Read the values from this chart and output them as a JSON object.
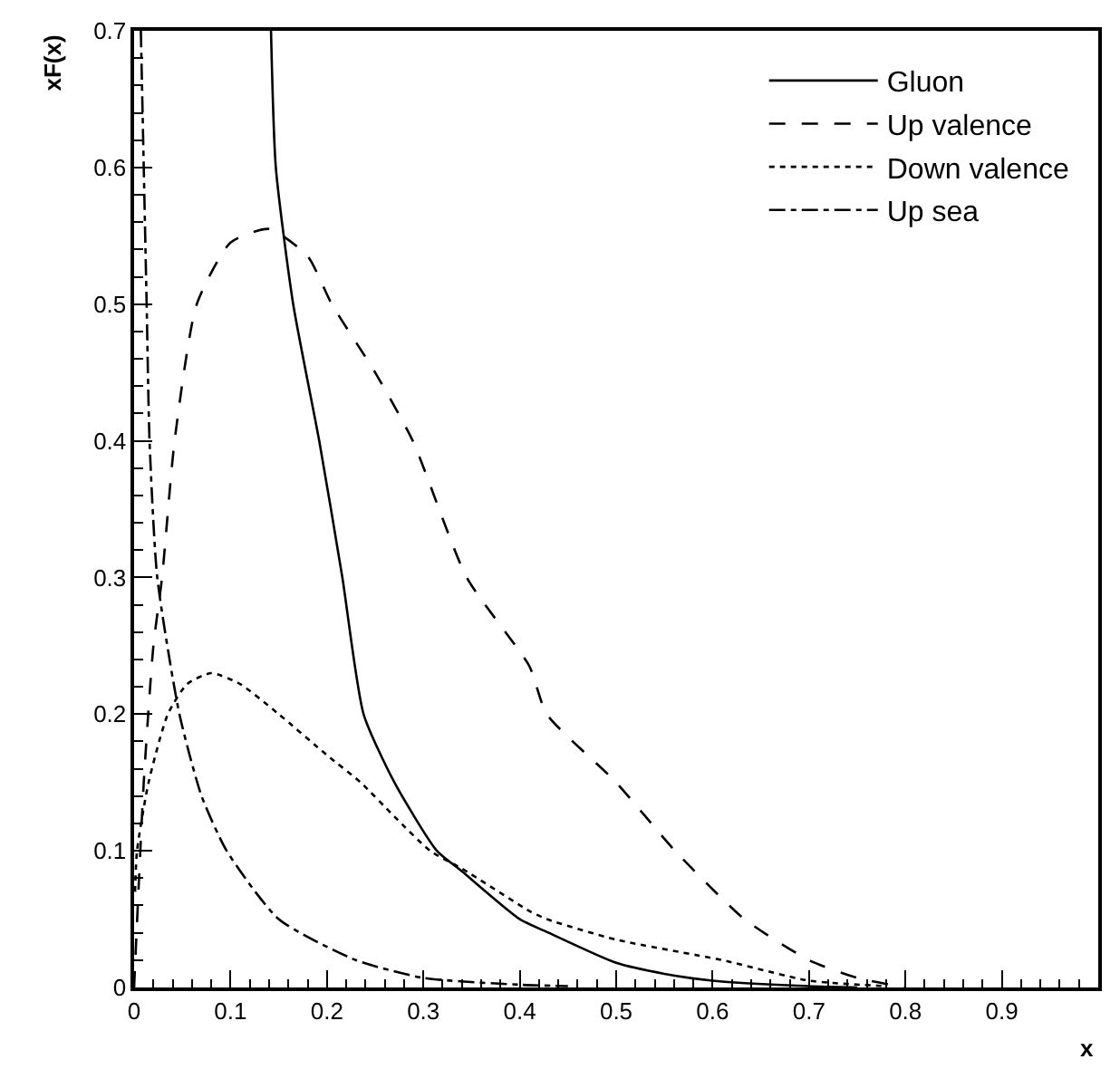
{
  "chart_data": {
    "type": "line",
    "xlabel": "x",
    "ylabel": "xF(x)",
    "xlim": [
      0,
      1
    ],
    "ylim": [
      0,
      0.7
    ],
    "xticks": [
      0,
      0.1,
      0.2,
      0.3,
      0.4,
      0.5,
      0.6,
      0.7,
      0.8,
      0.9
    ],
    "yticks": [
      0,
      0.1,
      0.2,
      0.3,
      0.4,
      0.5,
      0.6,
      0.7
    ],
    "legend": "top right",
    "marker": "none",
    "series": [
      {
        "name": "Gluon",
        "color": "#000000",
        "line_style": "solid",
        "x": [
          0.142,
          0.147,
          0.165,
          0.192,
          0.216,
          0.238,
          0.27,
          0.314,
          0.34,
          0.4,
          0.43,
          0.5,
          0.55,
          0.6,
          0.7,
          0.75
        ],
        "values": [
          0.7,
          0.6,
          0.5,
          0.4,
          0.3,
          0.2,
          0.15,
          0.1,
          0.085,
          0.05,
          0.04,
          0.018,
          0.01,
          0.005,
          0.001,
          0
        ]
      },
      {
        "name": "Up valence",
        "color": "#000000",
        "line_style": "dashed",
        "x": [
          0,
          0.01,
          0.02,
          0.029,
          0.042,
          0.065,
          0.1,
          0.14,
          0.18,
          0.205,
          0.25,
          0.289,
          0.345,
          0.41,
          0.428,
          0.5,
          0.561,
          0.633,
          0.7,
          0.75,
          0.8
        ],
        "values": [
          0,
          0.15,
          0.25,
          0.3,
          0.4,
          0.5,
          0.545,
          0.555,
          0.535,
          0.5,
          0.45,
          0.4,
          0.3,
          0.235,
          0.2,
          0.15,
          0.1,
          0.05,
          0.02,
          0.007,
          0
        ]
      },
      {
        "name": "Down valence",
        "color": "#000000",
        "line_style": "dotted",
        "x": [
          0.001,
          0.003,
          0.015,
          0.035,
          0.055,
          0.08,
          0.11,
          0.15,
          0.2,
          0.235,
          0.27,
          0.307,
          0.34,
          0.41,
          0.428,
          0.5,
          0.61,
          0.7,
          0.78
        ],
        "values": [
          0.07,
          0.1,
          0.15,
          0.2,
          0.222,
          0.23,
          0.222,
          0.2,
          0.17,
          0.15,
          0.125,
          0.1,
          0.087,
          0.056,
          0.05,
          0.035,
          0.02,
          0.005,
          0.001
        ]
      },
      {
        "name": "Up sea",
        "color": "#000000",
        "line_style": "dashdot",
        "x": [
          0.007,
          0.01,
          0.013,
          0.016,
          0.024,
          0.047,
          0.07,
          0.096,
          0.15,
          0.23,
          0.3,
          0.4,
          0.45
        ],
        "values": [
          0.7,
          0.6,
          0.5,
          0.4,
          0.3,
          0.2,
          0.14,
          0.1,
          0.05,
          0.02,
          0.007,
          0.002,
          0.001
        ]
      }
    ]
  }
}
